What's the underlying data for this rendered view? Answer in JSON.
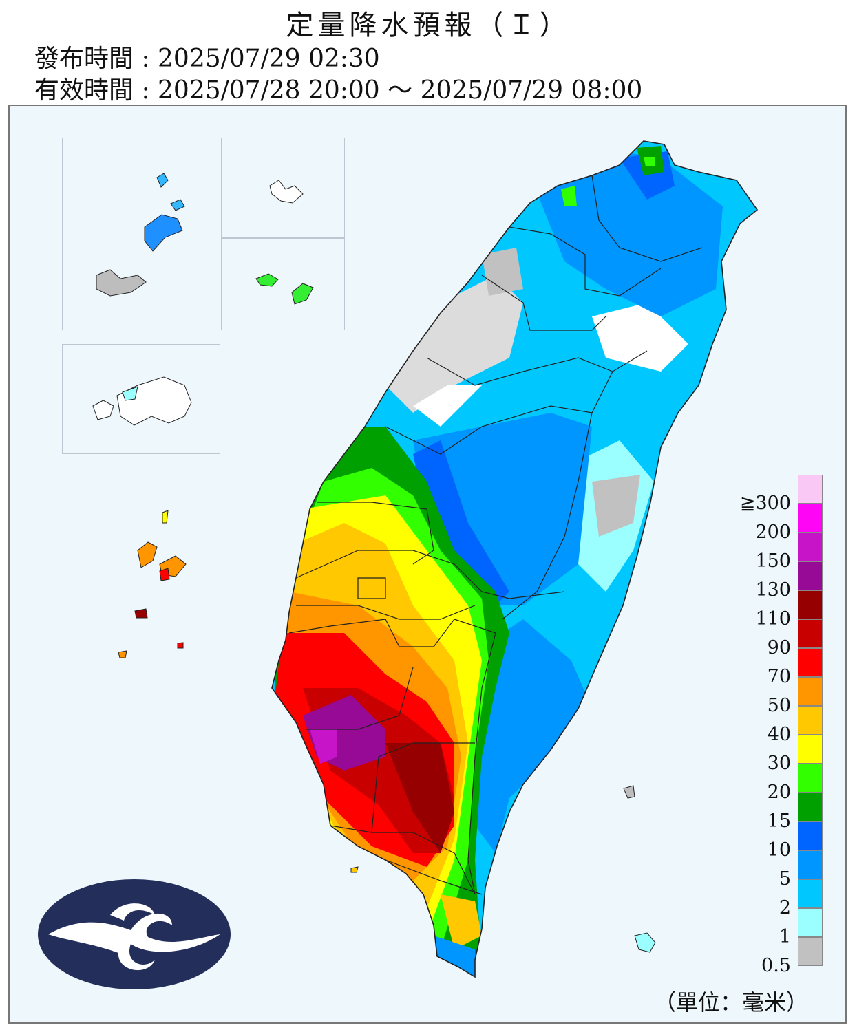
{
  "header": {
    "title": "定量降水預報（Ｉ）",
    "issued": "發布時間 : 2025/07/29 02:30",
    "valid": "有效時間 : 2025/07/28 20:00 ～ 2025/07/29 08:00"
  },
  "legend": {
    "unit": "（單位：毫米）",
    "items": [
      {
        "label": "≧300",
        "color": "#fac8f5"
      },
      {
        "label": "200",
        "color": "#ff05f5"
      },
      {
        "label": "150",
        "color": "#c814c8"
      },
      {
        "label": "130",
        "color": "#960a96"
      },
      {
        "label": "110",
        "color": "#960000"
      },
      {
        "label": "90",
        "color": "#c80000"
      },
      {
        "label": "70",
        "color": "#ff0000"
      },
      {
        "label": "50",
        "color": "#ff9600"
      },
      {
        "label": "40",
        "color": "#ffc800"
      },
      {
        "label": "30",
        "color": "#ffff00"
      },
      {
        "label": "20",
        "color": "#32ff00"
      },
      {
        "label": "15",
        "color": "#00a000"
      },
      {
        "label": "10",
        "color": "#0064ff"
      },
      {
        "label": "5",
        "color": "#0096ff"
      },
      {
        "label": "2",
        "color": "#00c8ff"
      },
      {
        "label": "1",
        "color": "#9bffff"
      },
      {
        "label": "0.5",
        "color": "#c1c1c1"
      }
    ]
  },
  "map": {
    "background_color": "#eef7fc",
    "logo": "cwa-logo-icon"
  }
}
